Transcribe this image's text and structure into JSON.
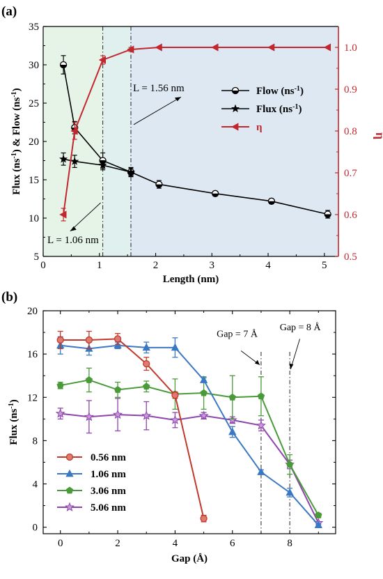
{
  "panels": {
    "a": {
      "label": "(a)"
    },
    "b": {
      "label": "(b)"
    }
  },
  "chart_data": [
    {
      "id": "a",
      "type": "line",
      "xlabel": "Length (nm)",
      "ylabel": "Flux (ns-1) & Flow (ns-1)",
      "ylabel_parts": [
        "Flux (ns",
        "-1",
        ") & Flow (ns",
        "-1",
        ")"
      ],
      "y2label": "η",
      "xlim": [
        0,
        5.25
      ],
      "ylim": [
        5,
        35
      ],
      "y2lim": [
        0.5,
        1.05
      ],
      "xticks": [
        "0",
        "1",
        "2",
        "3",
        "4",
        "5"
      ],
      "yticks": [
        "5",
        "10",
        "15",
        "20",
        "25",
        "30",
        "35"
      ],
      "y2ticks": [
        "0.5",
        "0.6",
        "0.7",
        "0.8",
        "0.9",
        "1.0"
      ],
      "regions": [
        {
          "from": 0,
          "to": 1.06,
          "color": "#e6f4e8"
        },
        {
          "from": 1.06,
          "to": 1.56,
          "color": "#dff0ee"
        },
        {
          "from": 1.56,
          "to": 5.25,
          "color": "#dde8f2"
        }
      ],
      "vlines": [
        1.06,
        1.56
      ],
      "annotations": [
        {
          "text": "L = 1.56 nm",
          "x_at": 1.56
        },
        {
          "text": "L = 1.06 nm",
          "x_at": 1.06
        }
      ],
      "legend": {
        "position": "top-right",
        "entries": [
          {
            "label": "Flow (ns-1)",
            "parts": [
              "Flow (ns",
              "-1",
              ")"
            ],
            "marker": "half-circle",
            "color": "#000000"
          },
          {
            "label": "Flux (ns-1)",
            "parts": [
              "Flux (ns",
              "-1",
              ")"
            ],
            "marker": "star",
            "color": "#000000"
          },
          {
            "label": "η",
            "parts": [
              "η"
            ],
            "marker": "left-triangle",
            "color": "#c1272d"
          }
        ]
      },
      "series": [
        {
          "name": "Flow (ns-1)",
          "axis": "left",
          "marker": "half-circle",
          "color": "#000000",
          "x": [
            0.36,
            0.56,
            1.06,
            1.56,
            2.06,
            3.06,
            4.06,
            5.06
          ],
          "y": [
            30.0,
            21.8,
            17.5,
            16.0,
            14.4,
            13.2,
            12.2,
            10.5
          ],
          "err": [
            1.2,
            0.8,
            1.0,
            0.6,
            0.5,
            0.3,
            0.3,
            0.5
          ]
        },
        {
          "name": "Flux (ns-1)",
          "axis": "left",
          "marker": "star",
          "color": "#000000",
          "x": [
            0.36,
            0.56,
            1.06,
            1.56
          ],
          "y": [
            17.7,
            17.4,
            16.9,
            16.0
          ],
          "err": [
            0.8,
            0.8,
            0.6,
            0.5
          ]
        },
        {
          "name": "η",
          "axis": "right",
          "marker": "left-triangle",
          "color": "#c1272d",
          "x": [
            0.36,
            0.56,
            1.06,
            1.56,
            2.06,
            3.06,
            4.06,
            5.06
          ],
          "y": [
            0.6,
            0.8,
            0.97,
            0.995,
            1.0,
            1.0,
            1.0,
            1.0
          ],
          "err": [
            0.015,
            0.02,
            0.01,
            0.005,
            0.0,
            0.0,
            0.0,
            0.0
          ]
        }
      ]
    },
    {
      "id": "b",
      "type": "line",
      "xlabel": "Gap (Å)",
      "ylabel": "Flux (ns-1)",
      "ylabel_parts": [
        "Flux (ns",
        "-1",
        ")"
      ],
      "xlim": [
        -0.6,
        9.6
      ],
      "ylim": [
        -0.6,
        20
      ],
      "xticks": [
        "0",
        "2",
        "4",
        "6",
        "8"
      ],
      "yticks": [
        "0",
        "4",
        "8",
        "12",
        "16",
        "20"
      ],
      "vlines": [
        7,
        8
      ],
      "annotations": [
        {
          "text": "Gap = 7 Å",
          "x_at": 7
        },
        {
          "text": "Gap = 8 Å",
          "x_at": 8
        }
      ],
      "legend": {
        "position": "bottom-left",
        "entries": [
          {
            "label": "0.56 nm",
            "marker": "circle",
            "color": "#c0392b"
          },
          {
            "label": "1.06 nm",
            "marker": "triangle",
            "color": "#3b78c3"
          },
          {
            "label": "3.06 nm",
            "marker": "pentagon",
            "color": "#4a9a3a"
          },
          {
            "label": "5.06 nm",
            "marker": "star",
            "color": "#8e44ad"
          }
        ]
      },
      "series": [
        {
          "name": "0.56 nm",
          "marker": "circle",
          "color": "#c0392b",
          "x": [
            0,
            1,
            2,
            3,
            4,
            5
          ],
          "y": [
            17.3,
            17.3,
            17.4,
            15.1,
            12.2,
            0.8
          ],
          "err": [
            0.8,
            0.8,
            0.5,
            0.6,
            0.3,
            0.3
          ]
        },
        {
          "name": "1.06 nm",
          "marker": "triangle",
          "color": "#3b78c3",
          "x": [
            0,
            1,
            2,
            3,
            4,
            5,
            6,
            7,
            8,
            9
          ],
          "y": [
            16.8,
            16.5,
            16.8,
            16.6,
            16.6,
            13.6,
            8.8,
            5.1,
            3.2,
            0.2
          ],
          "err": [
            0.8,
            0.6,
            0.3,
            0.5,
            0.9,
            0.2,
            0.5,
            0.2,
            0.4,
            0.1
          ]
        },
        {
          "name": "3.06 nm",
          "marker": "pentagon",
          "color": "#4a9a3a",
          "x": [
            0,
            1,
            2,
            3,
            4,
            5,
            6,
            7,
            8,
            9
          ],
          "y": [
            13.1,
            13.6,
            12.7,
            13.0,
            12.3,
            12.4,
            12.0,
            12.1,
            5.8,
            1.1
          ],
          "err": [
            0.3,
            1.1,
            0.7,
            0.5,
            1.4,
            1.5,
            2.0,
            1.8,
            0.9,
            0.2
          ]
        },
        {
          "name": "5.06 nm",
          "marker": "star",
          "color": "#8e44ad",
          "x": [
            0,
            1,
            2,
            3,
            4,
            5,
            6,
            7,
            8,
            9
          ],
          "y": [
            10.5,
            10.2,
            10.4,
            10.3,
            9.9,
            10.3,
            9.9,
            9.4,
            5.8,
            0.4
          ],
          "err": [
            0.5,
            1.5,
            1.5,
            1.3,
            0.7,
            0.3,
            0.3,
            0.5,
            0.4,
            0.1
          ]
        }
      ]
    }
  ]
}
